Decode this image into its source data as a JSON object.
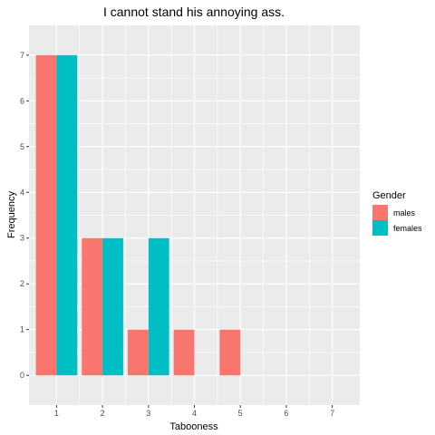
{
  "chart_data": {
    "type": "bar",
    "title": "I cannot stand his annoying ass.",
    "xlabel": "Tabooness",
    "ylabel": "Frequency",
    "categories": [
      "1",
      "2",
      "3",
      "4",
      "5",
      "6",
      "7"
    ],
    "xlim": [
      0.4,
      7.6
    ],
    "ylim": [
      -0.65,
      7.65
    ],
    "yticks": [
      0,
      1,
      2,
      3,
      4,
      5,
      6,
      7
    ],
    "grid": true,
    "legend_position": "right",
    "legend_title": "Gender",
    "series": [
      {
        "name": "males",
        "color": "#F8766D",
        "values": [
          7,
          3,
          1,
          1,
          1,
          0,
          0
        ]
      },
      {
        "name": "females",
        "color": "#00BFC4",
        "values": [
          7,
          3,
          3,
          0,
          0,
          0,
          0
        ]
      }
    ],
    "panel_background": "#EBEBEB",
    "grid_color": "#FFFFFF"
  }
}
